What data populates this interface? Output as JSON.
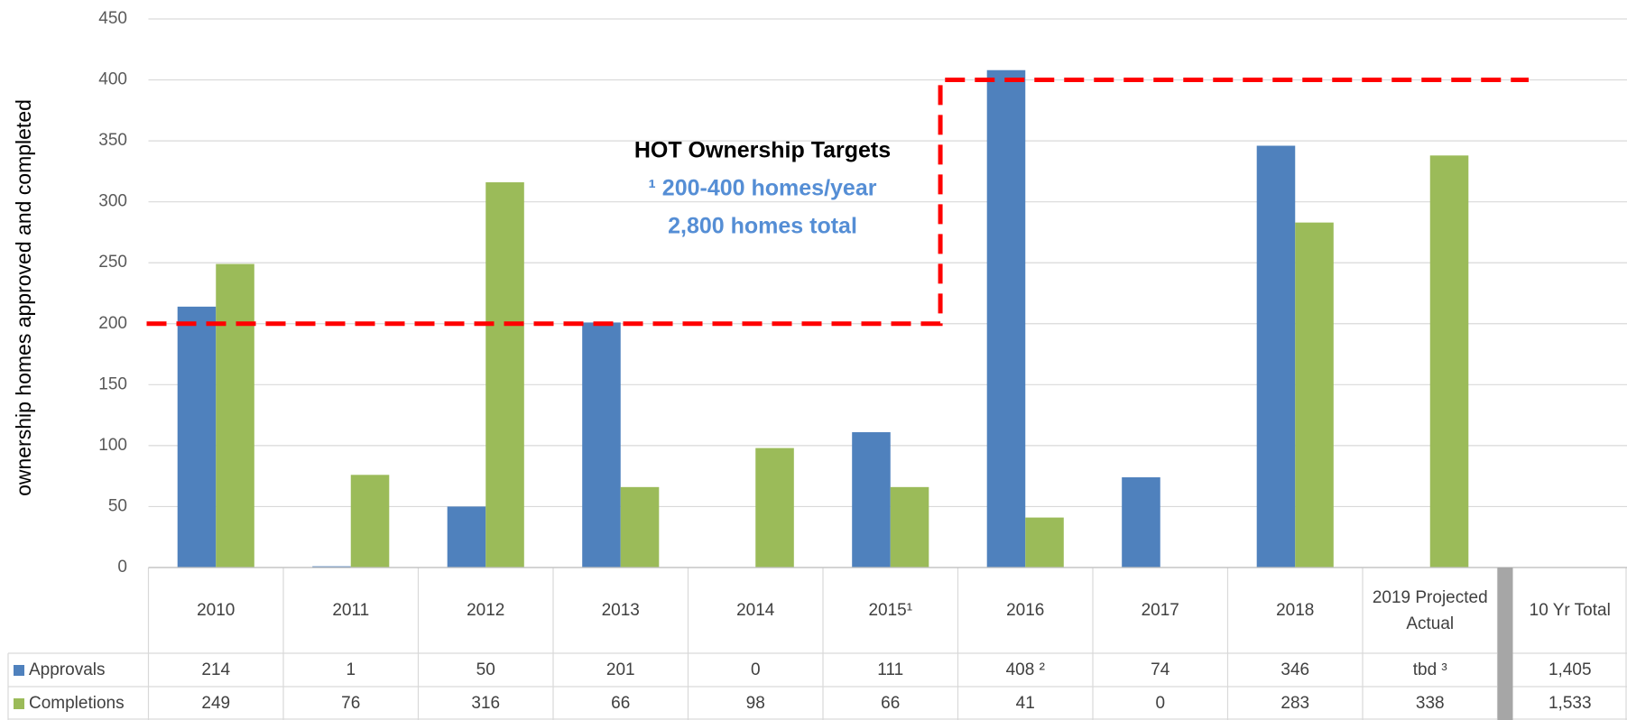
{
  "chart_data": {
    "type": "bar",
    "y_label": "ownership homes approved and completed",
    "categories": [
      "2010",
      "2011",
      "2012",
      "2013",
      "2014",
      "2015¹",
      "2016",
      "2017",
      "2018",
      "2019 Projected Actual"
    ],
    "series": [
      {
        "name": "Approvals",
        "color": "#4f81bd",
        "values": [
          214,
          1,
          50,
          201,
          0,
          111,
          408,
          74,
          346,
          null
        ],
        "value_labels": [
          "214",
          "1",
          "50",
          "201",
          "0",
          "111",
          "408 ²",
          "74",
          "346",
          "tbd ³"
        ],
        "total": {
          "value": 1405,
          "label": "1,405"
        }
      },
      {
        "name": "Completions",
        "color": "#9bbb59",
        "values": [
          249,
          76,
          316,
          66,
          98,
          66,
          41,
          0,
          283,
          338
        ],
        "value_labels": [
          "249",
          "76",
          "316",
          "66",
          "98",
          "66",
          "41",
          "0",
          "283",
          "338"
        ],
        "total": {
          "value": 1533,
          "label": "1,533"
        }
      }
    ],
    "total_label": "10 Yr Total",
    "ylim": [
      0,
      450
    ],
    "yticks": [
      0,
      50,
      100,
      150,
      200,
      250,
      300,
      350,
      400,
      450
    ],
    "grid": true,
    "targets": {
      "values": [
        200,
        400
      ],
      "color": "#ff0000"
    },
    "annotations": [
      "HOT Ownership Targets",
      "¹ 200-400 homes/year",
      "2,800 homes total"
    ]
  }
}
